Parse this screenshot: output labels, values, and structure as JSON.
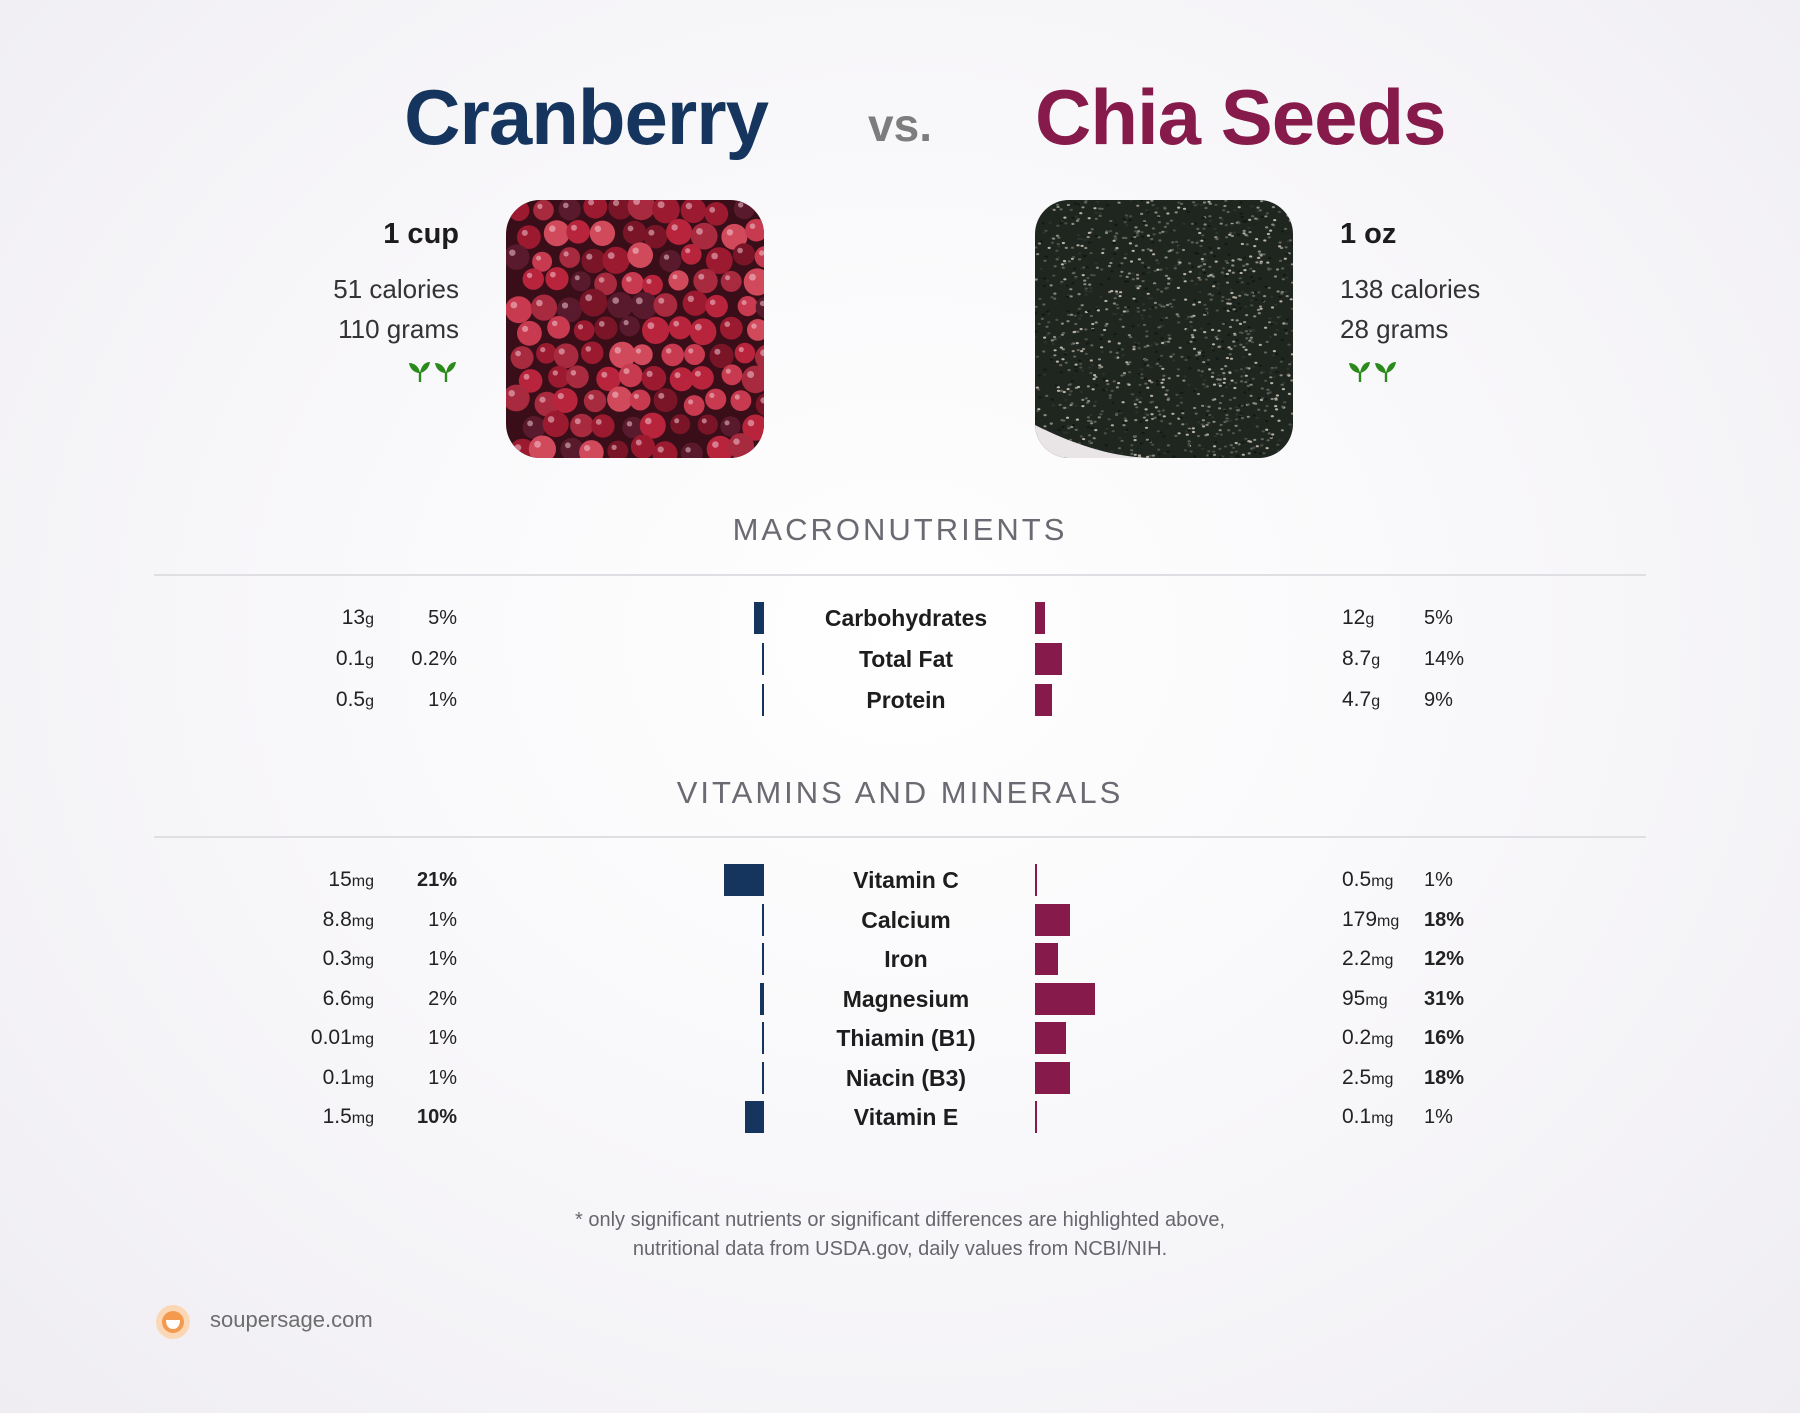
{
  "header": {
    "left_name": "Cranberry",
    "vs": "vs.",
    "right_name": "Chia Seeds"
  },
  "left_food": {
    "serving": "1 cup",
    "calories": "51 calories",
    "grams": "110 grams",
    "image_icon": "cranberries-photo",
    "plant_icon": "vegan-sprouts-icon"
  },
  "right_food": {
    "serving": "1 oz",
    "calories": "138 calories",
    "grams": "28 grams",
    "image_icon": "chia-seeds-photo",
    "plant_icon": "vegan-sprouts-icon"
  },
  "colors": {
    "left": "#15355e",
    "right": "#861a4b"
  },
  "sections": {
    "macros_title": "MACRONUTRIENTS",
    "vitamins_title": "VITAMINS AND MINERALS"
  },
  "chart_data": [
    {
      "type": "bar",
      "title": "MACRONUTRIENTS",
      "orientation": "horizontal, mirrored",
      "categories": [
        "Carbohydrates",
        "Total Fat",
        "Protein"
      ],
      "series": [
        {
          "name": "Cranberry",
          "amount_num": [
            "13",
            "0.1",
            "0.5"
          ],
          "amount_unit": [
            "g",
            "g",
            "g"
          ],
          "pct_label": [
            "5%",
            "0.2%",
            "1%"
          ],
          "values": [
            5,
            0.2,
            1
          ],
          "highlight": [
            false,
            false,
            false
          ]
        },
        {
          "name": "Chia Seeds",
          "amount_num": [
            "12",
            "8.7",
            "4.7"
          ],
          "amount_unit": [
            "g",
            "g",
            "g"
          ],
          "pct_label": [
            "5%",
            "14%",
            "9%"
          ],
          "values": [
            5,
            14,
            9
          ],
          "highlight": [
            false,
            false,
            false
          ]
        }
      ]
    },
    {
      "type": "bar",
      "title": "VITAMINS AND MINERALS",
      "orientation": "horizontal, mirrored",
      "categories": [
        "Vitamin C",
        "Calcium",
        "Iron",
        "Magnesium",
        "Thiamin (B1)",
        "Niacin (B3)",
        "Vitamin E"
      ],
      "series": [
        {
          "name": "Cranberry",
          "amount_num": [
            "15",
            "8.8",
            "0.3",
            "6.6",
            "0.01",
            "0.1",
            "1.5"
          ],
          "amount_unit": [
            "mg",
            "mg",
            "mg",
            "mg",
            "mg",
            "mg",
            "mg"
          ],
          "pct_label": [
            "21%",
            "1%",
            "1%",
            "2%",
            "1%",
            "1%",
            "10%"
          ],
          "values": [
            21,
            1,
            1,
            2,
            1,
            1,
            10
          ],
          "highlight": [
            true,
            false,
            false,
            false,
            false,
            false,
            true
          ]
        },
        {
          "name": "Chia Seeds",
          "amount_num": [
            "0.5",
            "179",
            "2.2",
            "95",
            "0.2",
            "2.5",
            "0.1"
          ],
          "amount_unit": [
            "mg",
            "mg",
            "mg",
            "mg",
            "mg",
            "mg",
            "mg"
          ],
          "pct_label": [
            "1%",
            "18%",
            "12%",
            "31%",
            "16%",
            "18%",
            "1%"
          ],
          "values": [
            1,
            18,
            12,
            31,
            16,
            18,
            1
          ],
          "highlight": [
            false,
            true,
            true,
            true,
            true,
            true,
            false
          ]
        }
      ]
    }
  ],
  "footer": {
    "note_line1": "* only significant nutrients or significant differences are highlighted above,",
    "note_line2": "nutritional data from USDA.gov, daily values from NCBI/NIH.",
    "brand": "soupersage.com",
    "brand_icon": "soupersage-logo-icon"
  }
}
